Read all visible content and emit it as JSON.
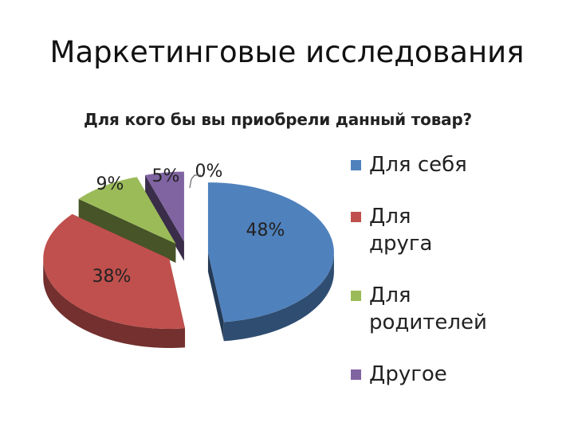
{
  "slide": {
    "title": "Маркетинговые исследования"
  },
  "chart_data": {
    "type": "pie",
    "title": "Для кого бы вы приобрели данный товар?",
    "categories": [
      "Для себя",
      "Для друга",
      "Для родителей",
      "Другое",
      ""
    ],
    "values": [
      48,
      38,
      9,
      5,
      0
    ],
    "labels": [
      "48%",
      "38%",
      "9%",
      "5%",
      "0%"
    ],
    "colors": [
      "#4f81bd",
      "#c0504d",
      "#9bbb59",
      "#8064a2",
      "#4bacc6"
    ],
    "legend_position": "right",
    "style": "3d-exploded"
  },
  "legend": [
    {
      "label": "Для себя",
      "color": "#4f81bd"
    },
    {
      "label": "Для друга",
      "color": "#c0504d"
    },
    {
      "label": "Для родителей",
      "color": "#9bbb59"
    },
    {
      "label": "Другое",
      "color": "#8064a2"
    }
  ]
}
